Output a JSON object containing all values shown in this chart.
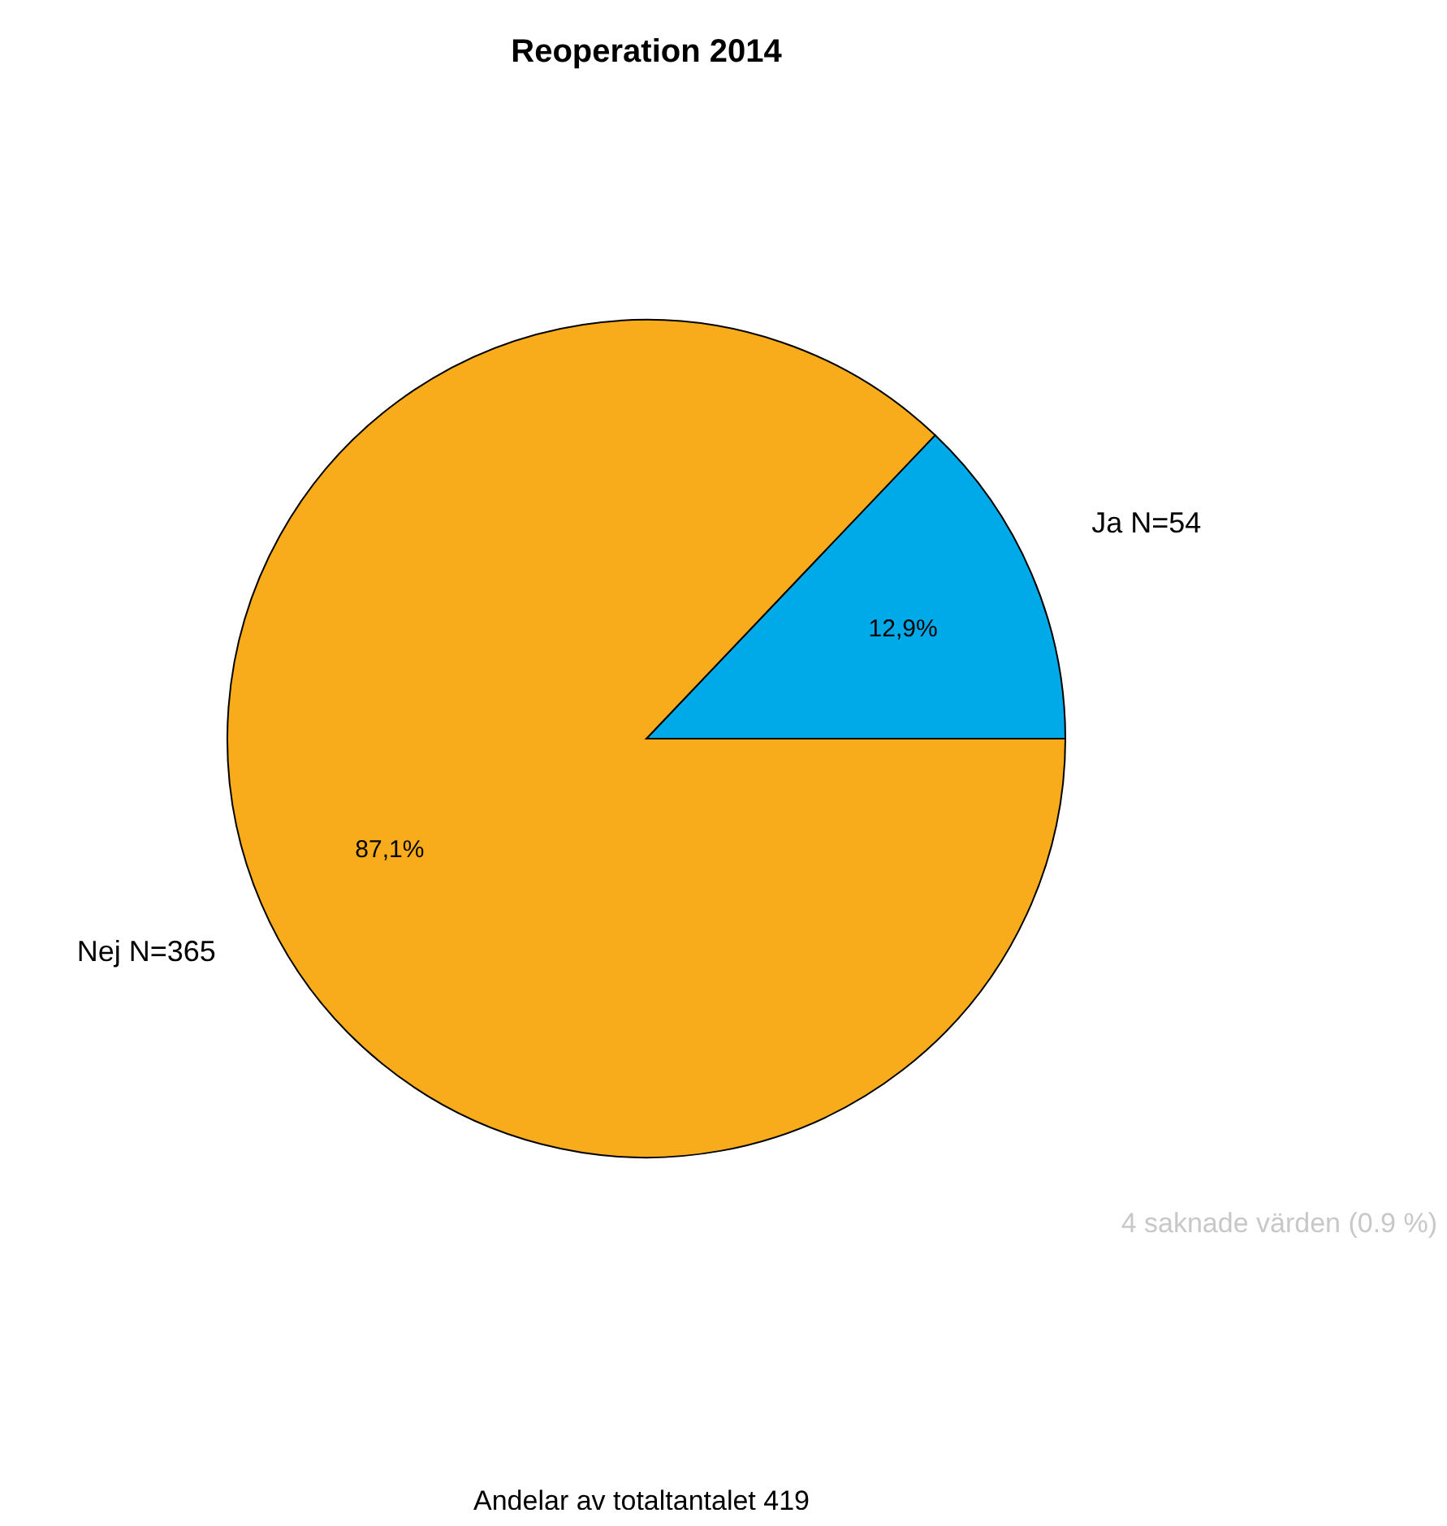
{
  "chart_data": {
    "type": "pie",
    "title": "Reoperation  2014",
    "categories": [
      "Ja N=54",
      "Nej N=365"
    ],
    "values": [
      12.9,
      87.1
    ],
    "value_labels": [
      "12,9%",
      "87,1%"
    ],
    "colors": [
      "#00a9e8",
      "#f8ac1c"
    ],
    "legend": false,
    "annotations": [
      "4 saknade värden (0.9 %)",
      "Andelar av totaltantalet 419"
    ]
  }
}
